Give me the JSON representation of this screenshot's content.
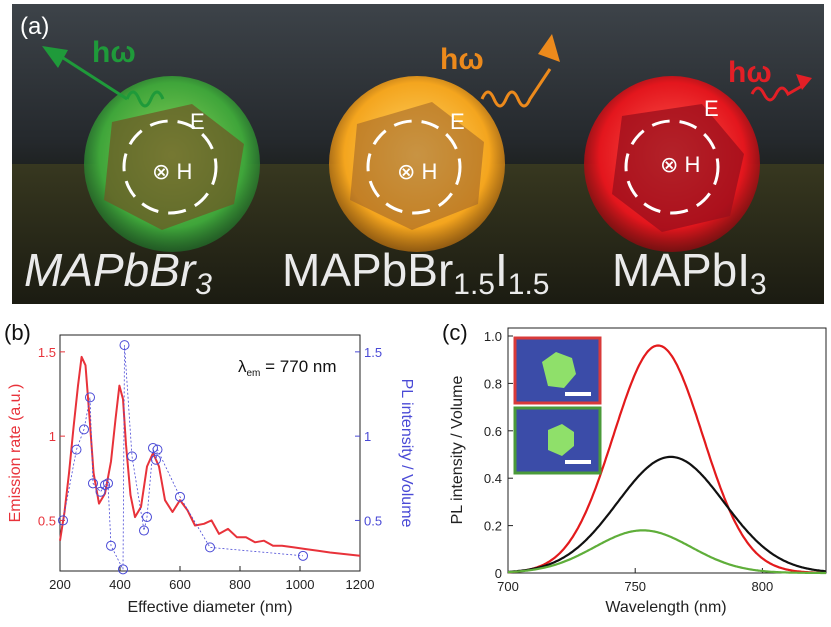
{
  "panel_a": {
    "label": "(a)",
    "photon": "hω",
    "e_field": "E",
    "h_field": "⊗ H",
    "particles": [
      {
        "name": "MAPbBr",
        "sub1": "3",
        "mid": "",
        "sub2": "",
        "color": "#3fae3a",
        "arrow": "#1f9a3a"
      },
      {
        "name": "MAPbBr",
        "sub1": "1.5",
        "mid": "I",
        "sub2": "1.5",
        "color": "#f1a21f",
        "arrow": "#ec8a1c"
      },
      {
        "name": "MAPbI",
        "sub1": "3",
        "mid": "",
        "sub2": "",
        "color": "#e31f26",
        "arrow": "#e31f26"
      }
    ]
  },
  "panel_b": {
    "label": "(b)",
    "annotation_main": "λ",
    "annotation_sub": "em",
    "annotation_rest": " = 770 nm",
    "chart_data": {
      "type": "line",
      "xlabel": "Effective diameter (nm)",
      "ylabel_left": "Emission rate (a.u.)",
      "ylabel_right": "PL intensity / Volume",
      "xlim": [
        200,
        1200
      ],
      "ylim_left": [
        0.2,
        1.6
      ],
      "ylim_right": [
        0.2,
        1.6
      ],
      "x_ticks": [
        "200",
        "400",
        "600",
        "800",
        "1000",
        "1200"
      ],
      "x_tick_values": [
        200,
        400,
        600,
        800,
        1000,
        1200
      ],
      "y_ticks_left": [
        "0.5",
        "1",
        "1.5"
      ],
      "y_tick_values_left": [
        0.5,
        1.0,
        1.5
      ],
      "y_ticks_right": [
        "0.5",
        "1",
        "1.5"
      ],
      "y_tick_values_right": [
        0.5,
        1.0,
        1.5
      ],
      "series": [
        {
          "type": "line",
          "color": "#e8323a",
          "x": [
            200,
            215,
            230,
            245,
            260,
            272,
            285,
            298,
            312,
            330,
            350,
            370,
            385,
            398,
            410,
            420,
            435,
            450,
            470,
            490,
            510,
            530,
            550,
            575,
            600,
            625,
            650,
            680,
            705,
            730,
            760,
            790,
            820,
            850,
            880,
            910,
            940,
            980,
            1020,
            1060,
            1100,
            1150,
            1200
          ],
          "y": [
            0.38,
            0.55,
            0.78,
            1.05,
            1.3,
            1.47,
            1.42,
            1.12,
            0.78,
            0.6,
            0.66,
            0.85,
            1.1,
            1.3,
            1.22,
            0.95,
            0.65,
            0.52,
            0.58,
            0.82,
            0.9,
            0.82,
            0.62,
            0.55,
            0.62,
            0.56,
            0.47,
            0.48,
            0.5,
            0.42,
            0.45,
            0.4,
            0.4,
            0.37,
            0.38,
            0.35,
            0.35,
            0.34,
            0.33,
            0.32,
            0.31,
            0.3,
            0.29
          ]
        },
        {
          "type": "dashed-markers",
          "color": "#4a4ad6",
          "x": [
            210,
            255,
            280,
            300,
            310,
            335,
            350,
            360,
            370,
            410,
            415,
            440,
            480,
            490,
            510,
            520,
            525,
            600,
            700,
            1010
          ],
          "y": [
            0.5,
            0.92,
            1.04,
            1.23,
            0.72,
            0.67,
            0.71,
            0.72,
            0.35,
            0.21,
            1.54,
            0.88,
            0.44,
            0.52,
            0.93,
            0.86,
            0.92,
            0.64,
            0.34,
            0.29
          ]
        }
      ]
    }
  },
  "panel_c": {
    "label": "(c)",
    "chart_data": {
      "type": "line",
      "xlabel": "Wavelength (nm)",
      "ylabel": "PL intensity / Volume",
      "xlim": [
        700,
        825
      ],
      "ylim": [
        0,
        1.0
      ],
      "x_ticks": [
        "700",
        "750",
        "800"
      ],
      "x_tick_values": [
        700,
        750,
        800
      ],
      "y_ticks": [
        "0",
        "0.2",
        "0.4",
        "0.6",
        "0.8",
        "1.0"
      ],
      "y_tick_values": [
        0,
        0.2,
        0.4,
        0.6,
        0.8,
        1.0
      ],
      "series": [
        {
          "color": "#e31a1c",
          "peak": 759,
          "height": 0.96,
          "width": 17.5
        },
        {
          "color": "#111111",
          "peak": 764,
          "height": 0.49,
          "width": 21
        },
        {
          "color": "#5fae3a",
          "peak": 753,
          "height": 0.18,
          "width": 19
        }
      ],
      "insets": [
        {
          "border": "#d83a3a"
        },
        {
          "border": "#4a9a3a"
        }
      ]
    }
  }
}
